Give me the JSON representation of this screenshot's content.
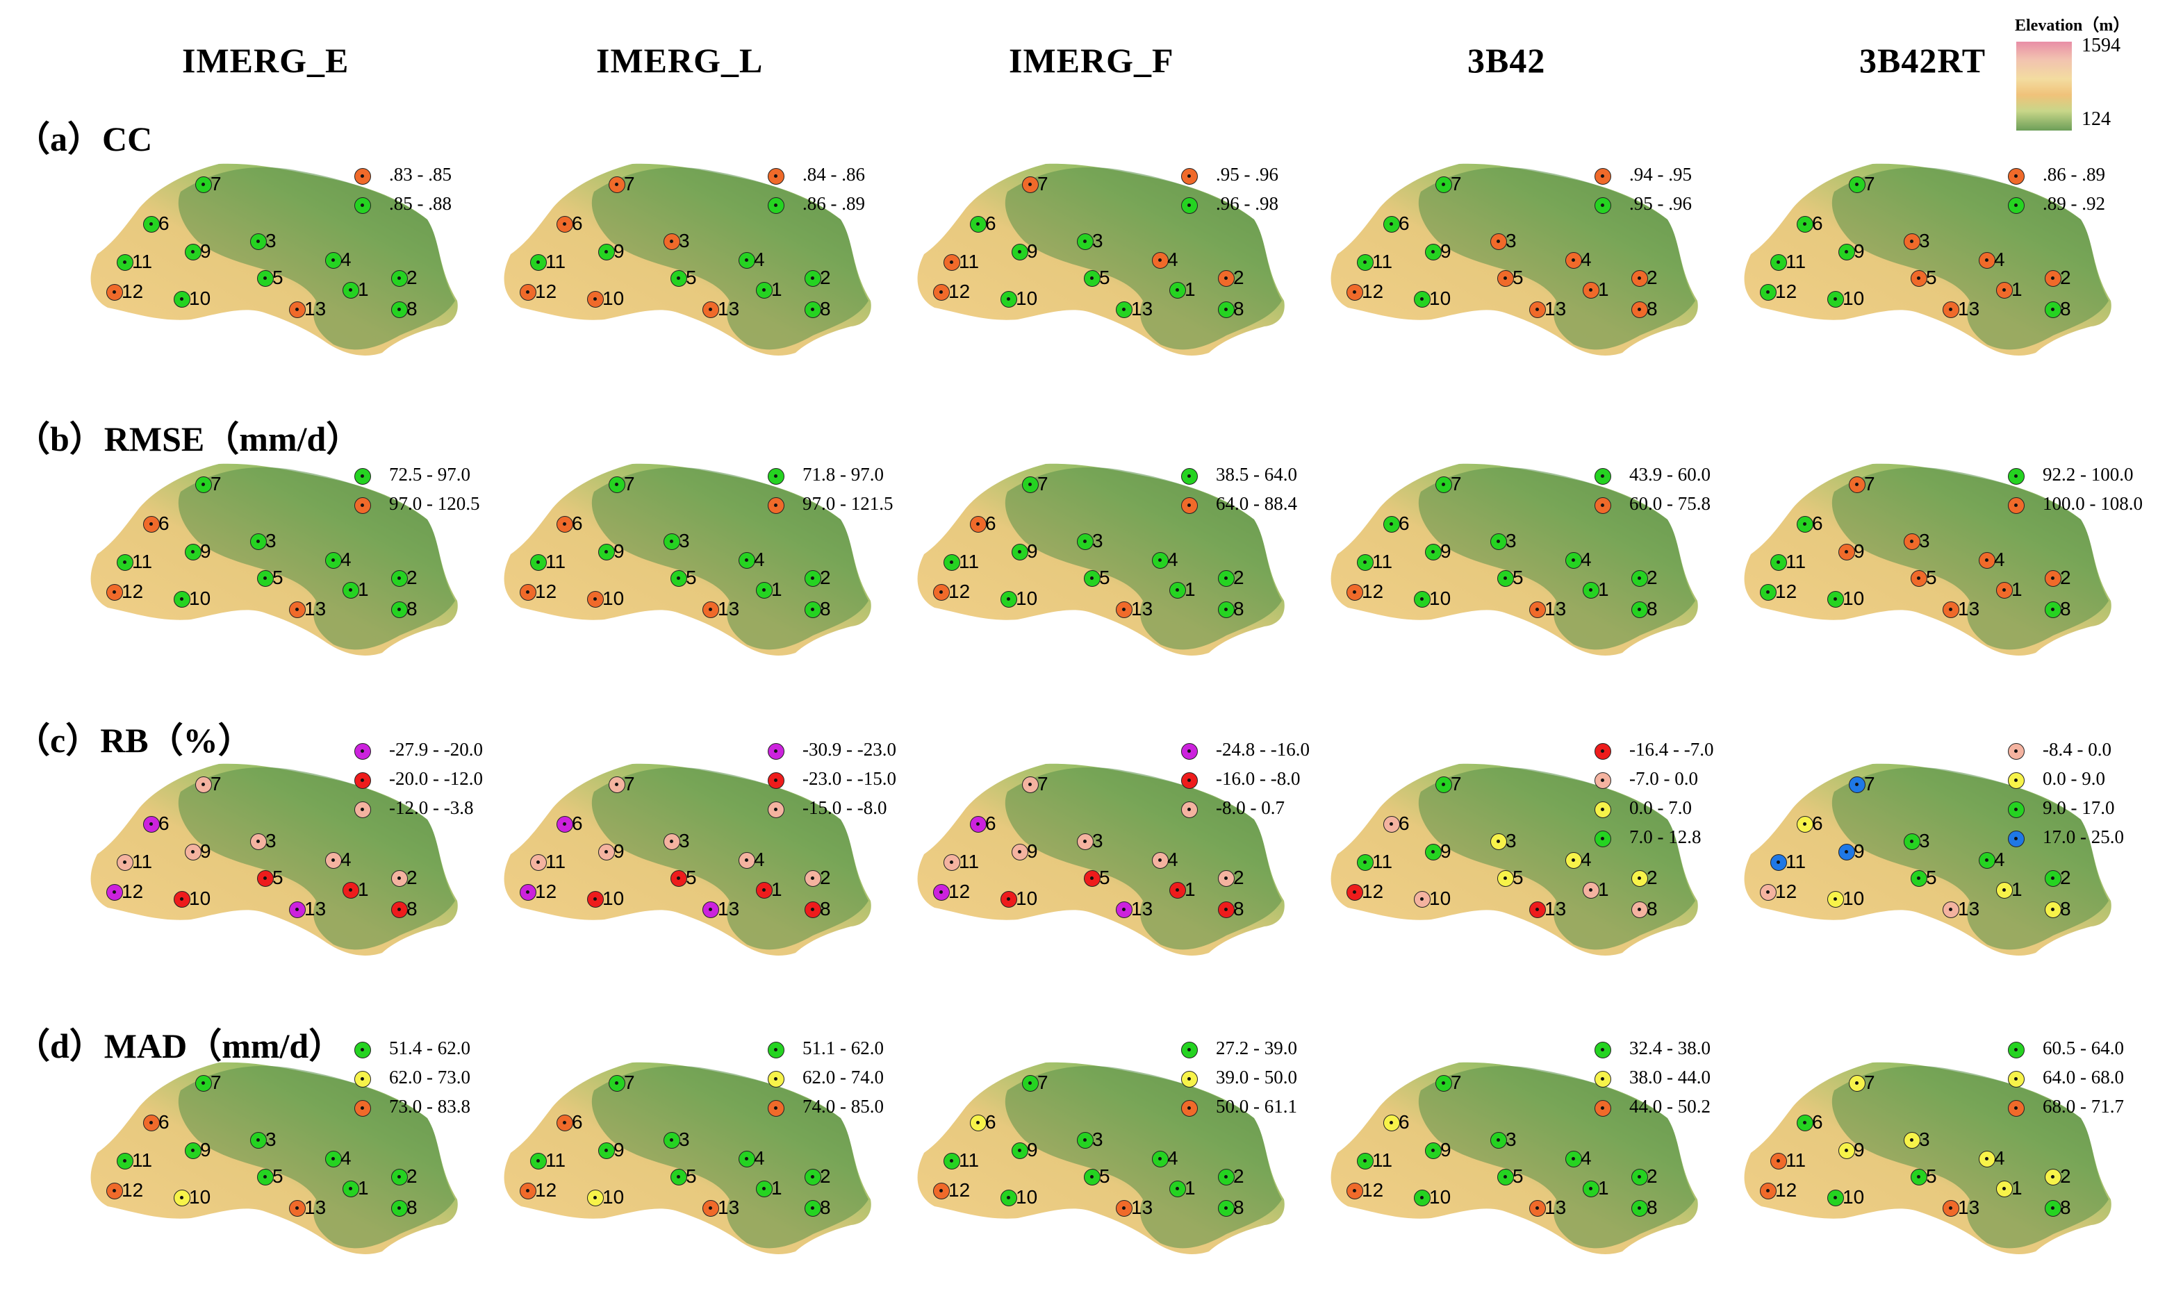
{
  "columns": [
    "IMERG_E",
    "IMERG_L",
    "IMERG_F",
    "3B42",
    "3B42RT"
  ],
  "rows": [
    {
      "label": "（a）CC"
    },
    {
      "label": "（b）RMSE（mm/d）"
    },
    {
      "label": "（c）RB（%）"
    },
    {
      "label": "（d）MAD（mm/d）"
    }
  ],
  "elevation_legend": {
    "title": "Elevation（m）",
    "max": "1594",
    "min": "124"
  },
  "colors": {
    "green": "#25d321",
    "orange": "#f06a2a",
    "red": "#ee1c1c",
    "purple": "#cc22dd",
    "salmon": "#f4b3a0",
    "yellow": "#f7f34a",
    "blue": "#1f78e6"
  },
  "map_features": {
    "basin_colors": [
      "#f2d08a",
      "#e7c97e",
      "#9cbf68",
      "#6f9e54",
      "#5a8f48"
    ],
    "elevation_range": [
      124,
      1594
    ]
  },
  "stations": [
    "1",
    "2",
    "3",
    "4",
    "5",
    "6",
    "7",
    "8",
    "9",
    "10",
    "11",
    "12",
    "13"
  ],
  "panels": [
    [
      {
        "legend": [
          {
            "color": "orange",
            "text": ".83 - .85"
          },
          {
            "color": "green",
            "text": ".85 - .88"
          }
        ],
        "colors": {
          "1": "green",
          "2": "green",
          "3": "green",
          "4": "green",
          "5": "green",
          "6": "green",
          "7": "green",
          "8": "green",
          "9": "green",
          "10": "green",
          "11": "green",
          "12": "orange",
          "13": "orange"
        }
      },
      {
        "legend": [
          {
            "color": "orange",
            "text": ".84 - .86"
          },
          {
            "color": "green",
            "text": ".86 - .89"
          }
        ],
        "colors": {
          "1": "green",
          "2": "green",
          "3": "orange",
          "4": "green",
          "5": "green",
          "6": "orange",
          "7": "orange",
          "8": "green",
          "9": "green",
          "10": "orange",
          "11": "green",
          "12": "orange",
          "13": "orange"
        }
      },
      {
        "legend": [
          {
            "color": "orange",
            "text": ".95 - .96"
          },
          {
            "color": "green",
            "text": ".96 - .98"
          }
        ],
        "colors": {
          "1": "green",
          "2": "orange",
          "3": "green",
          "4": "orange",
          "5": "green",
          "6": "green",
          "7": "orange",
          "8": "green",
          "9": "green",
          "10": "green",
          "11": "orange",
          "12": "orange",
          "13": "green"
        }
      },
      {
        "legend": [
          {
            "color": "orange",
            "text": ".94 - .95"
          },
          {
            "color": "green",
            "text": ".95 - .96"
          }
        ],
        "colors": {
          "1": "orange",
          "2": "orange",
          "3": "orange",
          "4": "orange",
          "5": "orange",
          "6": "green",
          "7": "green",
          "8": "orange",
          "9": "green",
          "10": "green",
          "11": "green",
          "12": "orange",
          "13": "orange"
        }
      },
      {
        "legend": [
          {
            "color": "orange",
            "text": ".86 - .89"
          },
          {
            "color": "green",
            "text": ".89 - .92"
          }
        ],
        "colors": {
          "1": "orange",
          "2": "orange",
          "3": "orange",
          "4": "orange",
          "5": "orange",
          "6": "green",
          "7": "green",
          "8": "green",
          "9": "green",
          "10": "green",
          "11": "green",
          "12": "green",
          "13": "orange"
        }
      }
    ],
    [
      {
        "legend": [
          {
            "color": "green",
            "text": "72.5 - 97.0"
          },
          {
            "color": "orange",
            "text": "97.0 - 120.5"
          }
        ],
        "colors": {
          "1": "green",
          "2": "green",
          "3": "green",
          "4": "green",
          "5": "green",
          "6": "orange",
          "7": "green",
          "8": "green",
          "9": "green",
          "10": "green",
          "11": "green",
          "12": "orange",
          "13": "orange"
        }
      },
      {
        "legend": [
          {
            "color": "green",
            "text": "71.8 - 97.0"
          },
          {
            "color": "orange",
            "text": "97.0 - 121.5"
          }
        ],
        "colors": {
          "1": "green",
          "2": "green",
          "3": "green",
          "4": "green",
          "5": "green",
          "6": "orange",
          "7": "green",
          "8": "green",
          "9": "green",
          "10": "orange",
          "11": "green",
          "12": "orange",
          "13": "orange"
        }
      },
      {
        "legend": [
          {
            "color": "green",
            "text": "38.5 - 64.0"
          },
          {
            "color": "orange",
            "text": "64.0 - 88.4"
          }
        ],
        "colors": {
          "1": "green",
          "2": "green",
          "3": "green",
          "4": "green",
          "5": "green",
          "6": "orange",
          "7": "green",
          "8": "green",
          "9": "green",
          "10": "green",
          "11": "green",
          "12": "orange",
          "13": "orange"
        }
      },
      {
        "legend": [
          {
            "color": "green",
            "text": "43.9 - 60.0"
          },
          {
            "color": "orange",
            "text": "60.0 - 75.8"
          }
        ],
        "colors": {
          "1": "green",
          "2": "green",
          "3": "green",
          "4": "green",
          "5": "green",
          "6": "green",
          "7": "green",
          "8": "green",
          "9": "green",
          "10": "green",
          "11": "green",
          "12": "orange",
          "13": "orange"
        }
      },
      {
        "legend": [
          {
            "color": "green",
            "text": "92.2 - 100.0"
          },
          {
            "color": "orange",
            "text": "100.0 - 108.0"
          }
        ],
        "colors": {
          "1": "orange",
          "2": "orange",
          "3": "orange",
          "4": "orange",
          "5": "orange",
          "6": "green",
          "7": "orange",
          "8": "green",
          "9": "orange",
          "10": "green",
          "11": "green",
          "12": "green",
          "13": "orange"
        }
      }
    ],
    [
      {
        "legend": [
          {
            "color": "purple",
            "text": "-27.9 - -20.0"
          },
          {
            "color": "red",
            "text": "-20.0 - -12.0"
          },
          {
            "color": "salmon",
            "text": "-12.0 - -3.8"
          }
        ],
        "colors": {
          "1": "red",
          "2": "salmon",
          "3": "salmon",
          "4": "salmon",
          "5": "red",
          "6": "purple",
          "7": "salmon",
          "8": "red",
          "9": "salmon",
          "10": "red",
          "11": "salmon",
          "12": "purple",
          "13": "purple"
        }
      },
      {
        "legend": [
          {
            "color": "purple",
            "text": "-30.9 - -23.0"
          },
          {
            "color": "red",
            "text": "-23.0 - -15.0"
          },
          {
            "color": "salmon",
            "text": "-15.0 - -8.0"
          }
        ],
        "colors": {
          "1": "red",
          "2": "salmon",
          "3": "salmon",
          "4": "salmon",
          "5": "red",
          "6": "purple",
          "7": "salmon",
          "8": "red",
          "9": "salmon",
          "10": "red",
          "11": "salmon",
          "12": "purple",
          "13": "purple"
        }
      },
      {
        "legend": [
          {
            "color": "purple",
            "text": "-24.8 - -16.0"
          },
          {
            "color": "red",
            "text": "-16.0 - -8.0"
          },
          {
            "color": "salmon",
            "text": "-8.0 - 0.7"
          }
        ],
        "colors": {
          "1": "red",
          "2": "salmon",
          "3": "salmon",
          "4": "salmon",
          "5": "red",
          "6": "purple",
          "7": "salmon",
          "8": "red",
          "9": "salmon",
          "10": "red",
          "11": "salmon",
          "12": "purple",
          "13": "purple"
        }
      },
      {
        "legend": [
          {
            "color": "red",
            "text": "-16.4 - -7.0"
          },
          {
            "color": "salmon",
            "text": "-7.0 - 0.0"
          },
          {
            "color": "yellow",
            "text": "0.0 - 7.0"
          },
          {
            "color": "green",
            "text": "7.0 - 12.8"
          }
        ],
        "colors": {
          "1": "salmon",
          "2": "yellow",
          "3": "yellow",
          "4": "yellow",
          "5": "yellow",
          "6": "salmon",
          "7": "green",
          "8": "salmon",
          "9": "green",
          "10": "salmon",
          "11": "green",
          "12": "red",
          "13": "red"
        }
      },
      {
        "legend": [
          {
            "color": "salmon",
            "text": "-8.4 - 0.0"
          },
          {
            "color": "yellow",
            "text": "0.0 - 9.0"
          },
          {
            "color": "green",
            "text": "9.0 - 17.0"
          },
          {
            "color": "blue",
            "text": "17.0 - 25.0"
          }
        ],
        "colors": {
          "1": "yellow",
          "2": "green",
          "3": "green",
          "4": "green",
          "5": "green",
          "6": "yellow",
          "7": "blue",
          "8": "yellow",
          "9": "blue",
          "10": "yellow",
          "11": "blue",
          "12": "salmon",
          "13": "salmon"
        }
      }
    ],
    [
      {
        "legend": [
          {
            "color": "green",
            "text": "51.4 - 62.0"
          },
          {
            "color": "yellow",
            "text": "62.0 - 73.0"
          },
          {
            "color": "orange",
            "text": "73.0 - 83.8"
          }
        ],
        "colors": {
          "1": "green",
          "2": "green",
          "3": "green",
          "4": "green",
          "5": "green",
          "6": "orange",
          "7": "green",
          "8": "green",
          "9": "green",
          "10": "yellow",
          "11": "green",
          "12": "orange",
          "13": "orange"
        }
      },
      {
        "legend": [
          {
            "color": "green",
            "text": "51.1 - 62.0"
          },
          {
            "color": "yellow",
            "text": "62.0 - 74.0"
          },
          {
            "color": "orange",
            "text": "74.0 - 85.0"
          }
        ],
        "colors": {
          "1": "green",
          "2": "green",
          "3": "green",
          "4": "green",
          "5": "green",
          "6": "orange",
          "7": "green",
          "8": "green",
          "9": "green",
          "10": "yellow",
          "11": "green",
          "12": "orange",
          "13": "orange"
        }
      },
      {
        "legend": [
          {
            "color": "green",
            "text": "27.2 - 39.0"
          },
          {
            "color": "yellow",
            "text": "39.0 - 50.0"
          },
          {
            "color": "orange",
            "text": "50.0 - 61.1"
          }
        ],
        "colors": {
          "1": "green",
          "2": "green",
          "3": "green",
          "4": "green",
          "5": "green",
          "6": "yellow",
          "7": "green",
          "8": "green",
          "9": "green",
          "10": "green",
          "11": "green",
          "12": "orange",
          "13": "orange"
        }
      },
      {
        "legend": [
          {
            "color": "green",
            "text": "32.4 - 38.0"
          },
          {
            "color": "yellow",
            "text": "38.0 - 44.0"
          },
          {
            "color": "orange",
            "text": "44.0 - 50.2"
          }
        ],
        "colors": {
          "1": "green",
          "2": "green",
          "3": "green",
          "4": "green",
          "5": "green",
          "6": "yellow",
          "7": "green",
          "8": "green",
          "9": "green",
          "10": "green",
          "11": "green",
          "12": "orange",
          "13": "orange"
        }
      },
      {
        "legend": [
          {
            "color": "green",
            "text": "60.5 - 64.0"
          },
          {
            "color": "yellow",
            "text": "64.0 - 68.0"
          },
          {
            "color": "orange",
            "text": "68.0 - 71.7"
          }
        ],
        "colors": {
          "1": "yellow",
          "2": "yellow",
          "3": "yellow",
          "4": "yellow",
          "5": "green",
          "6": "green",
          "7": "yellow",
          "8": "green",
          "9": "yellow",
          "10": "green",
          "11": "orange",
          "12": "orange",
          "13": "orange"
        }
      }
    ]
  ]
}
